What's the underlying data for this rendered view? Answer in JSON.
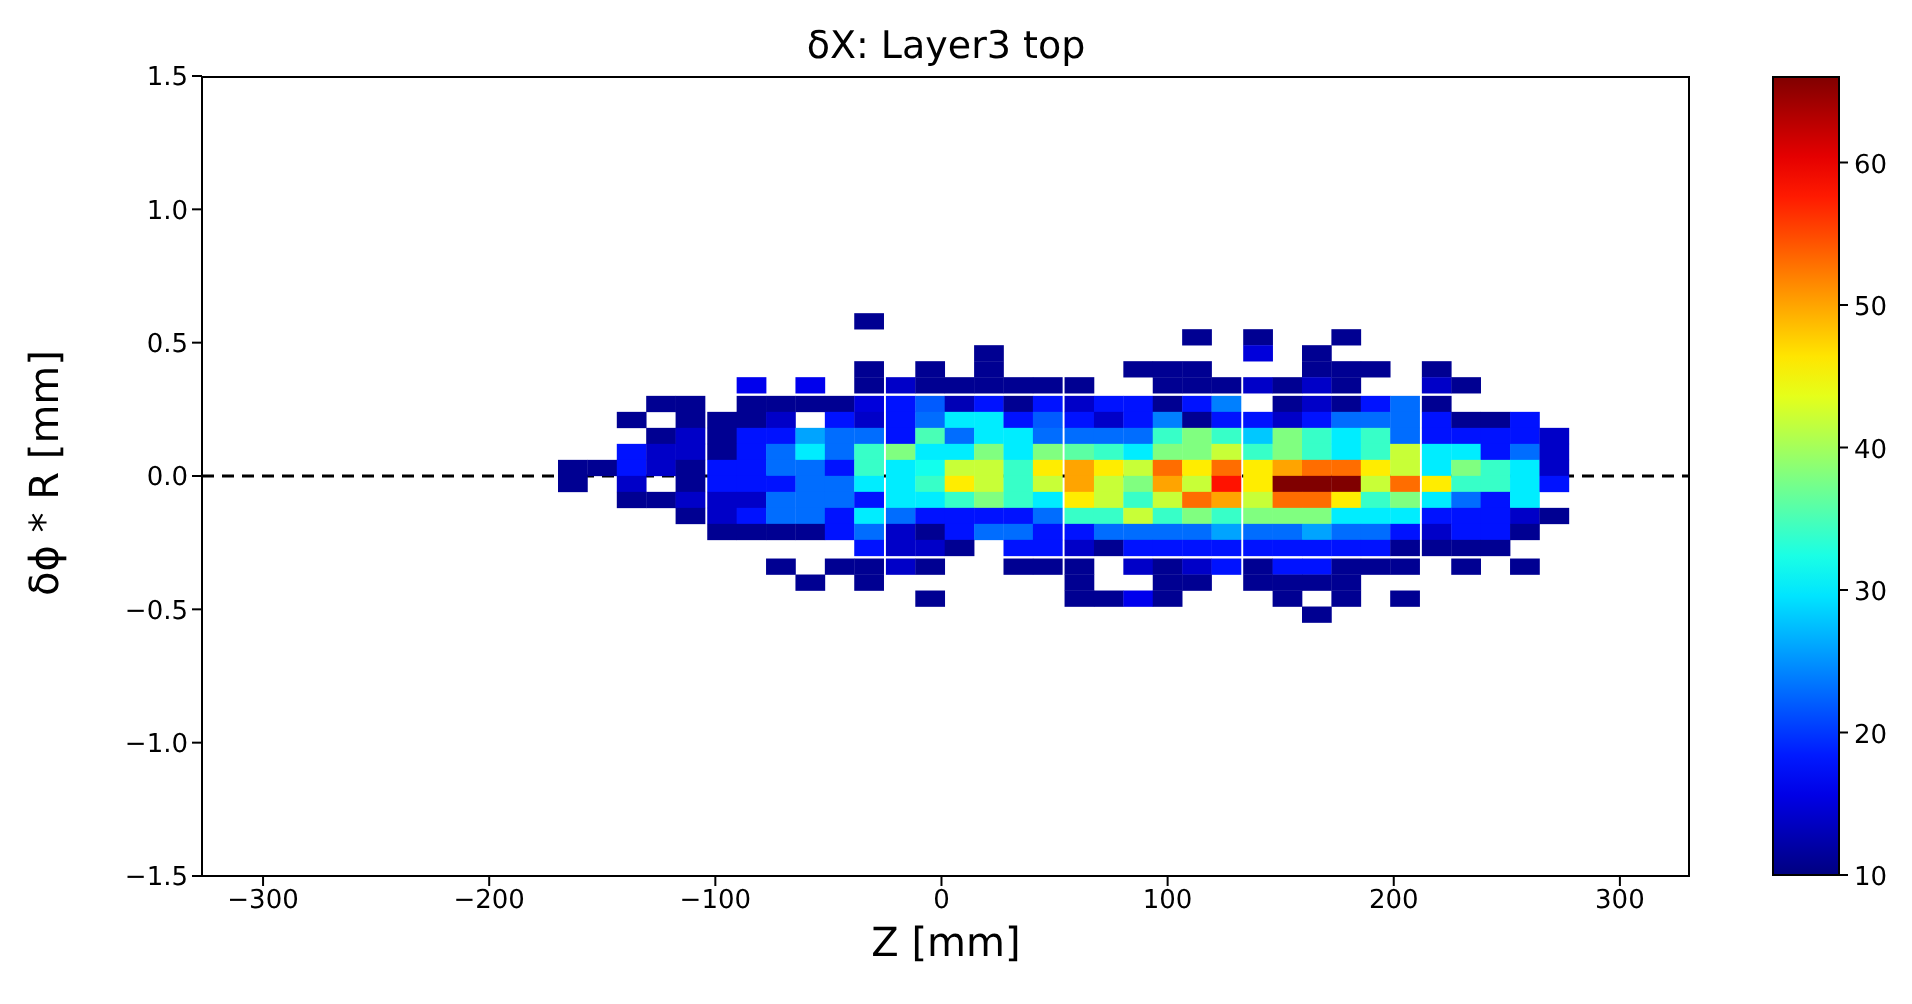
{
  "chart_data": {
    "type": "heatmap",
    "title": "δX: Layer3 top",
    "xlabel": "Z [mm]",
    "ylabel": "δϕ * R [mm]",
    "x": [
      -163,
      -150,
      -137,
      -124,
      -111,
      -97,
      -84,
      -71,
      -58,
      -45,
      -32,
      -18,
      -5,
      8,
      21,
      34,
      47,
      61,
      74,
      87,
      100,
      113,
      126,
      140,
      153,
      166,
      179,
      192,
      205,
      219,
      232,
      245,
      258,
      271
    ],
    "y": [
      0.58,
      0.52,
      0.46,
      0.4,
      0.34,
      0.27,
      0.21,
      0.15,
      0.09,
      0.03,
      -0.03,
      -0.09,
      -0.15,
      -0.21,
      -0.27,
      -0.34,
      -0.4,
      -0.46,
      -0.52
    ],
    "cells": [
      [
        null,
        null,
        null,
        null,
        null,
        null,
        null,
        null,
        null,
        null,
        11,
        null,
        null,
        null,
        null,
        null,
        null,
        null,
        null,
        null,
        null,
        null,
        null,
        null,
        null,
        null,
        null,
        null,
        null,
        null,
        null,
        null,
        null,
        null
      ],
      [
        null,
        null,
        null,
        null,
        null,
        null,
        null,
        null,
        null,
        null,
        null,
        null,
        null,
        null,
        null,
        null,
        null,
        null,
        null,
        null,
        null,
        11,
        null,
        11,
        null,
        null,
        11,
        null,
        null,
        null,
        null,
        null,
        null,
        null
      ],
      [
        null,
        null,
        null,
        null,
        null,
        null,
        null,
        null,
        null,
        null,
        null,
        null,
        null,
        null,
        11,
        null,
        null,
        null,
        null,
        null,
        null,
        null,
        null,
        15,
        null,
        11,
        null,
        null,
        null,
        null,
        null,
        null,
        null,
        null
      ],
      [
        null,
        null,
        null,
        null,
        null,
        null,
        null,
        null,
        null,
        null,
        11,
        null,
        11,
        null,
        11,
        null,
        null,
        null,
        null,
        11,
        11,
        11,
        null,
        null,
        null,
        11,
        11,
        11,
        null,
        11,
        null,
        null,
        null,
        null
      ],
      [
        null,
        null,
        null,
        null,
        null,
        null,
        16,
        null,
        16,
        null,
        11,
        14,
        11,
        11,
        11,
        11,
        11,
        11,
        null,
        null,
        11,
        11,
        11,
        14,
        11,
        14,
        11,
        null,
        null,
        14,
        11,
        null,
        null,
        null
      ],
      [
        null,
        null,
        null,
        11,
        11,
        null,
        11,
        11,
        11,
        11,
        15,
        18,
        22,
        13,
        18,
        11,
        18,
        14,
        18,
        18,
        11,
        18,
        24,
        null,
        11,
        14,
        11,
        18,
        23,
        11,
        null,
        null,
        null,
        null
      ],
      [
        null,
        null,
        11,
        null,
        11,
        11,
        11,
        14,
        null,
        18,
        14,
        18,
        23,
        30,
        30,
        18,
        22,
        18,
        14,
        18,
        24,
        11,
        18,
        18,
        14,
        18,
        23,
        23,
        23,
        18,
        11,
        11,
        18,
        null
      ],
      [
        null,
        null,
        null,
        11,
        14,
        11,
        18,
        18,
        26,
        23,
        23,
        18,
        35,
        23,
        30,
        30,
        23,
        23,
        23,
        23,
        34,
        38,
        34,
        28,
        38,
        34,
        30,
        34,
        23,
        18,
        18,
        18,
        18,
        14
      ],
      [
        null,
        null,
        18,
        14,
        14,
        11,
        18,
        23,
        30,
        23,
        34,
        38,
        30,
        30,
        38,
        30,
        38,
        36,
        34,
        30,
        38,
        38,
        42,
        34,
        38,
        34,
        30,
        34,
        42,
        30,
        30,
        18,
        23,
        14
      ],
      [
        11,
        11,
        18,
        14,
        11,
        18,
        18,
        23,
        23,
        18,
        34,
        30,
        32,
        42,
        42,
        34,
        46,
        50,
        46,
        42,
        53,
        46,
        53,
        46,
        50,
        53,
        53,
        46,
        42,
        30,
        38,
        34,
        30,
        14
      ],
      [
        11,
        null,
        14,
        null,
        11,
        18,
        18,
        18,
        23,
        23,
        30,
        30,
        34,
        46,
        42,
        34,
        42,
        50,
        42,
        38,
        50,
        42,
        58,
        46,
        66,
        66,
        66,
        42,
        53,
        46,
        34,
        34,
        30,
        18
      ],
      [
        null,
        null,
        11,
        11,
        14,
        14,
        14,
        23,
        23,
        23,
        18,
        30,
        30,
        34,
        38,
        34,
        30,
        46,
        42,
        34,
        42,
        53,
        50,
        42,
        53,
        53,
        46,
        34,
        38,
        30,
        23,
        18,
        30,
        null
      ],
      [
        null,
        null,
        null,
        null,
        11,
        14,
        18,
        23,
        23,
        18,
        30,
        23,
        18,
        18,
        18,
        18,
        23,
        34,
        34,
        42,
        34,
        38,
        34,
        38,
        38,
        38,
        30,
        30,
        30,
        18,
        18,
        18,
        14,
        11
      ],
      [
        null,
        null,
        null,
        null,
        null,
        11,
        11,
        11,
        11,
        18,
        23,
        14,
        11,
        18,
        23,
        23,
        18,
        18,
        23,
        23,
        23,
        23,
        26,
        23,
        23,
        26,
        23,
        23,
        18,
        14,
        18,
        18,
        11,
        null
      ],
      [
        null,
        null,
        null,
        null,
        null,
        null,
        null,
        null,
        null,
        null,
        18,
        14,
        14,
        11,
        null,
        18,
        18,
        14,
        11,
        18,
        18,
        18,
        18,
        18,
        18,
        18,
        18,
        18,
        11,
        11,
        11,
        11,
        null,
        null
      ],
      [
        null,
        null,
        null,
        null,
        null,
        null,
        null,
        11,
        null,
        11,
        11,
        14,
        11,
        null,
        null,
        11,
        11,
        11,
        null,
        14,
        11,
        14,
        18,
        11,
        18,
        18,
        11,
        11,
        11,
        null,
        11,
        null,
        11,
        null
      ],
      [
        null,
        null,
        null,
        null,
        null,
        null,
        null,
        null,
        11,
        null,
        11,
        null,
        null,
        null,
        null,
        null,
        null,
        11,
        null,
        null,
        11,
        11,
        null,
        11,
        11,
        11,
        11,
        null,
        null,
        null,
        null,
        null,
        null,
        null
      ],
      [
        null,
        null,
        null,
        null,
        null,
        null,
        null,
        null,
        null,
        null,
        null,
        null,
        11,
        null,
        null,
        null,
        null,
        11,
        11,
        16,
        11,
        null,
        null,
        null,
        11,
        null,
        11,
        null,
        11,
        null,
        null,
        null,
        null,
        null
      ],
      [
        null,
        null,
        null,
        null,
        null,
        null,
        null,
        null,
        null,
        null,
        null,
        null,
        null,
        null,
        null,
        null,
        null,
        null,
        null,
        null,
        null,
        null,
        null,
        null,
        null,
        11,
        null,
        null,
        null,
        null,
        null,
        null,
        null,
        null
      ]
    ],
    "xlim": [
      -327,
      331
    ],
    "xticks": [
      {
        "value": -300,
        "label": "−300"
      },
      {
        "value": -200,
        "label": "−200"
      },
      {
        "value": -100,
        "label": "−100"
      },
      0,
      100,
      200,
      300
    ],
    "ylim": [
      -1.5,
      1.5
    ],
    "yticks": [
      {
        "value": -1.5,
        "label": "−1.5"
      },
      {
        "value": -1,
        "label": "−1.0"
      },
      {
        "value": -0.5,
        "label": "−0.5"
      },
      {
        "value": 0,
        "label": "0.0"
      },
      0.5,
      {
        "value": 1,
        "label": "1.0"
      },
      1.5
    ],
    "clim": [
      10,
      66
    ],
    "cticks": [
      10,
      20,
      30,
      40,
      50,
      60
    ],
    "ref_lines": [
      {
        "axis": "y",
        "value": 0,
        "color": "#000000",
        "line_style": "dashed"
      }
    ]
  }
}
